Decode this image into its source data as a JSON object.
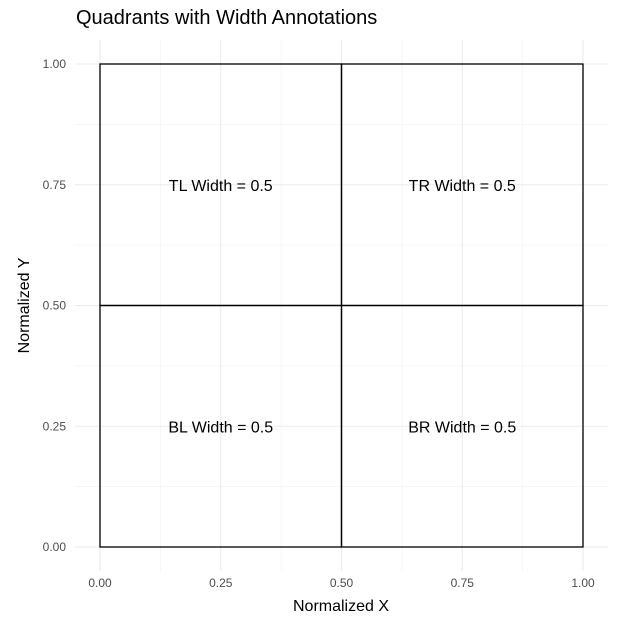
{
  "chart_data": {
    "type": "rect",
    "title": "Quadrants with Width Annotations",
    "xlabel": "Normalized X",
    "ylabel": "Normalized Y",
    "xlim": [
      0,
      1
    ],
    "ylim": [
      0,
      1
    ],
    "x_ticks": [
      0,
      0.25,
      0.5,
      0.75,
      1
    ],
    "x_tick_labels": [
      "0.00",
      "0.25",
      "0.50",
      "0.75",
      "1.00"
    ],
    "y_ticks": [
      0,
      0.25,
      0.5,
      0.75,
      1
    ],
    "y_tick_labels": [
      "0.00",
      "0.25",
      "0.50",
      "0.75",
      "1.00"
    ],
    "grid": true,
    "rect_color": "#000000",
    "quadrants": [
      {
        "id": "tl",
        "xmin": 0,
        "xmax": 0.5,
        "ymin": 0.5,
        "ymax": 1,
        "label": "TL Width = 0.5",
        "label_x": 0.25,
        "label_y": 0.75
      },
      {
        "id": "tr",
        "xmin": 0.5,
        "xmax": 1,
        "ymin": 0.5,
        "ymax": 1,
        "label": "TR Width = 0.5",
        "label_x": 0.75,
        "label_y": 0.75
      },
      {
        "id": "bl",
        "xmin": 0,
        "xmax": 0.5,
        "ymin": 0,
        "ymax": 0.5,
        "label": "BL Width = 0.5",
        "label_x": 0.25,
        "label_y": 0.25
      },
      {
        "id": "br",
        "xmin": 0.5,
        "xmax": 1,
        "ymin": 0,
        "ymax": 0.5,
        "label": "BR Width = 0.5",
        "label_x": 0.75,
        "label_y": 0.25
      }
    ]
  }
}
